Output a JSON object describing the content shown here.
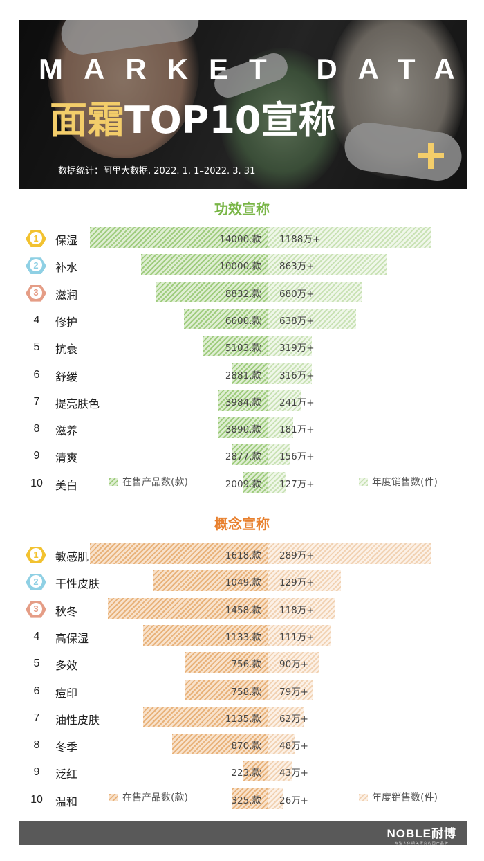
{
  "header": {
    "title": "MARKET DATA",
    "subtitle_highlight": "面霜",
    "subtitle_rest": "TOP10宣称",
    "source": "数据统计：阿里大数据, 2022. 1. 1–2022. 3. 31",
    "accent_color": "#f3cd6a"
  },
  "chart_data": [
    {
      "type": "bar",
      "title": "功效宣称",
      "title_color": "#7ab648",
      "categories": [
        "保湿",
        "补水",
        "滋润",
        "修护",
        "抗衰",
        "舒缓",
        "提亮肤色",
        "滋养",
        "清爽",
        "美白"
      ],
      "ranks": [
        "1",
        "2",
        "3",
        "4",
        "5",
        "6",
        "7",
        "8",
        "9",
        "10"
      ],
      "series": [
        {
          "name": "在售产品数(款)",
          "values": [
            14000,
            10000,
            8832,
            6600,
            5103,
            2881,
            3984,
            3890,
            2877,
            2009
          ],
          "labels": [
            "14000.款",
            "10000.款",
            "8832.款",
            "6600.款",
            "5103.款",
            "2881.款",
            "3984.款",
            "3890.款",
            "2877.款",
            "2009.款"
          ]
        },
        {
          "name": "年度销售数(件)",
          "values": [
            1188,
            863,
            680,
            638,
            319,
            316,
            241,
            181,
            156,
            127
          ],
          "labels": [
            "1188万+",
            "863万+",
            "680万+",
            "638万+",
            "319万+",
            "316万+",
            "241万+",
            "181万+",
            "156万+",
            "127万+"
          ]
        }
      ],
      "legend_placement": "bottom"
    },
    {
      "type": "bar",
      "title": "概念宣称",
      "title_color": "#e8802e",
      "categories": [
        "敏感肌",
        "干性皮肤",
        "秋冬",
        "高保湿",
        "多效",
        "痘印",
        "油性皮肤",
        "冬季",
        "泛红",
        "温和"
      ],
      "ranks": [
        "1",
        "2",
        "3",
        "4",
        "5",
        "6",
        "7",
        "8",
        "9",
        "10"
      ],
      "series": [
        {
          "name": "在售产品数(款)",
          "values": [
            1618,
            1049,
            1458,
            1133,
            756,
            758,
            1135,
            870,
            223,
            325
          ],
          "labels": [
            "1618.款",
            "1049.款",
            "1458.款",
            "1133.款",
            "756.款",
            "758.款",
            "1135.款",
            "870.款",
            "223.款",
            "325.款"
          ]
        },
        {
          "name": "年度销售数(件)",
          "values": [
            289,
            129,
            118,
            111,
            90,
            79,
            62,
            48,
            43,
            26
          ],
          "labels": [
            "289万+",
            "129万+",
            "118万+",
            "111万+",
            "90万+",
            "79万+",
            "62万+",
            "48万+",
            "43万+",
            "26万+"
          ]
        }
      ],
      "legend_placement": "bottom"
    }
  ],
  "medal_colors": [
    "#f2c230",
    "#8fd0e4",
    "#e59d86"
  ],
  "footer": {
    "brand": "NOBLE耐博",
    "tagline": "专注人体相关研究的国产品牌"
  }
}
